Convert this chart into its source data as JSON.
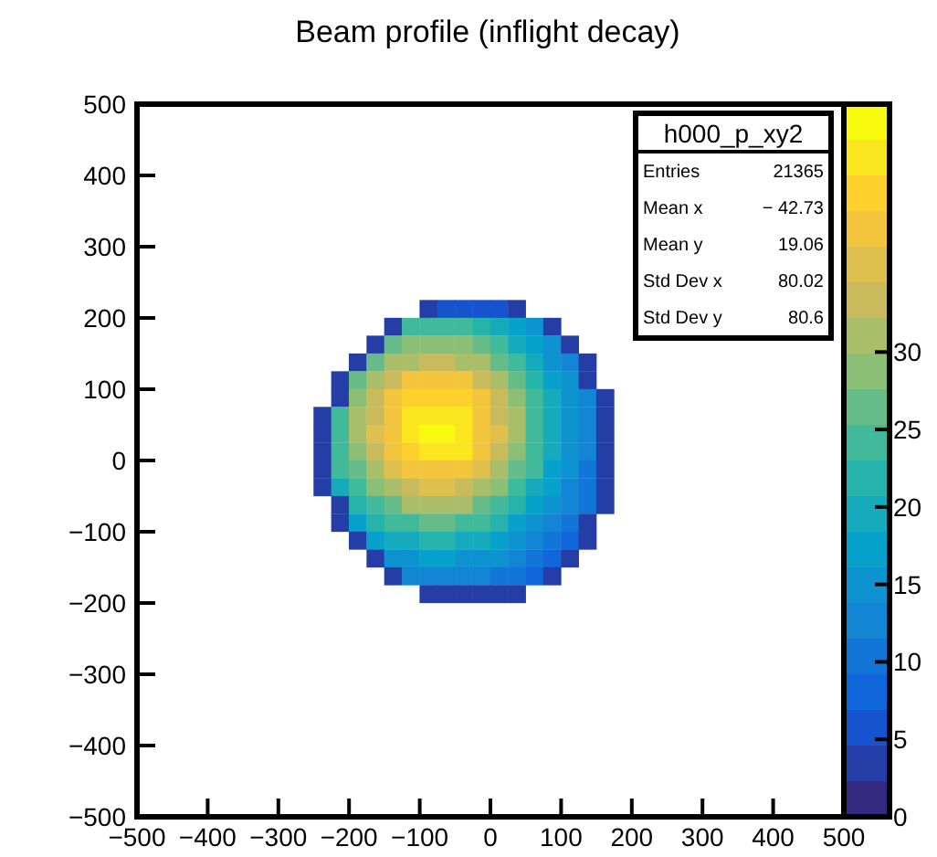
{
  "chart_data": {
    "type": "scatter",
    "title": "Beam profile (inflight decay)",
    "marker": "square",
    "xlim": [
      -500,
      500
    ],
    "ylim": [
      -500,
      500
    ],
    "xticks": [
      {
        "value": -500,
        "label": "−500"
      },
      {
        "value": -400,
        "label": "−400"
      },
      {
        "value": -300,
        "label": "−300"
      },
      {
        "value": -200,
        "label": "−200"
      },
      {
        "value": -100,
        "label": "−100"
      },
      0,
      100,
      200,
      300,
      400,
      500
    ],
    "yticks": [
      {
        "value": -500,
        "label": "−500"
      },
      {
        "value": -400,
        "label": "−400"
      },
      {
        "value": -300,
        "label": "−300"
      },
      {
        "value": -200,
        "label": "−200"
      },
      {
        "value": -100,
        "label": "−100"
      },
      0,
      100,
      200,
      300,
      400,
      500
    ],
    "clim": [
      0,
      46
    ],
    "cticks": [
      0,
      5,
      10,
      15,
      20,
      25,
      30
    ],
    "x": [
      -87.5,
      -62.5,
      -37.5,
      -12.5,
      12.5,
      37.5,
      -137.5,
      -112.5,
      -87.5,
      -62.5,
      -37.5,
      -12.5,
      12.5,
      37.5,
      62.5,
      87.5,
      -162.5,
      -137.5,
      -112.5,
      -87.5,
      -62.5,
      -37.5,
      -12.5,
      12.5,
      37.5,
      62.5,
      87.5,
      112.5,
      -187.5,
      -162.5,
      -137.5,
      -112.5,
      -87.5,
      -62.5,
      -37.5,
      -12.5,
      12.5,
      37.5,
      62.5,
      87.5,
      112.5,
      137.5,
      -212.5,
      -187.5,
      -162.5,
      -137.5,
      -112.5,
      -87.5,
      -62.5,
      -37.5,
      -12.5,
      12.5,
      37.5,
      62.5,
      87.5,
      112.5,
      137.5,
      -212.5,
      -187.5,
      -162.5,
      -137.5,
      -112.5,
      -87.5,
      -62.5,
      -37.5,
      -12.5,
      12.5,
      37.5,
      62.5,
      87.5,
      112.5,
      137.5,
      162.5,
      -237.5,
      -212.5,
      -187.5,
      -162.5,
      -137.5,
      -112.5,
      -87.5,
      -62.5,
      -37.5,
      -12.5,
      12.5,
      37.5,
      62.5,
      87.5,
      112.5,
      137.5,
      162.5,
      -237.5,
      -212.5,
      -187.5,
      -162.5,
      -137.5,
      -112.5,
      -87.5,
      -62.5,
      -37.5,
      -12.5,
      12.5,
      37.5,
      62.5,
      87.5,
      112.5,
      137.5,
      162.5,
      -237.5,
      -212.5,
      -187.5,
      -162.5,
      -137.5,
      -112.5,
      -87.5,
      -62.5,
      -37.5,
      -12.5,
      12.5,
      37.5,
      62.5,
      87.5,
      112.5,
      137.5,
      162.5,
      -237.5,
      -212.5,
      -187.5,
      -162.5,
      -137.5,
      -112.5,
      -87.5,
      -62.5,
      -37.5,
      -12.5,
      12.5,
      37.5,
      62.5,
      87.5,
      112.5,
      137.5,
      162.5,
      -237.5,
      -212.5,
      -187.5,
      -162.5,
      -137.5,
      -112.5,
      -87.5,
      -62.5,
      -37.5,
      -12.5,
      12.5,
      37.5,
      62.5,
      87.5,
      112.5,
      137.5,
      162.5,
      -212.5,
      -187.5,
      -162.5,
      -137.5,
      -112.5,
      -87.5,
      -62.5,
      -37.5,
      -12.5,
      12.5,
      37.5,
      62.5,
      87.5,
      112.5,
      137.5,
      162.5,
      -212.5,
      -187.5,
      -162.5,
      -137.5,
      -112.5,
      -87.5,
      -62.5,
      -37.5,
      -12.5,
      12.5,
      37.5,
      62.5,
      87.5,
      112.5,
      137.5,
      -187.5,
      -162.5,
      -137.5,
      -112.5,
      -87.5,
      -62.5,
      -37.5,
      -12.5,
      12.5,
      37.5,
      62.5,
      87.5,
      112.5,
      137.5,
      -162.5,
      -137.5,
      -112.5,
      -87.5,
      -62.5,
      -37.5,
      -12.5,
      12.5,
      37.5,
      62.5,
      87.5,
      112.5,
      -137.5,
      -112.5,
      -87.5,
      -62.5,
      -37.5,
      -12.5,
      12.5,
      37.5,
      62.5,
      87.5,
      -87.5,
      -62.5,
      -37.5,
      -12.5,
      12.5,
      37.5
    ],
    "values": [
      212.5,
      212.5,
      212.5,
      212.5,
      212.5,
      212.5,
      187.5,
      187.5,
      187.5,
      187.5,
      187.5,
      187.5,
      187.5,
      187.5,
      187.5,
      187.5,
      162.5,
      162.5,
      162.5,
      162.5,
      162.5,
      162.5,
      162.5,
      162.5,
      162.5,
      162.5,
      162.5,
      162.5,
      137.5,
      137.5,
      137.5,
      137.5,
      137.5,
      137.5,
      137.5,
      137.5,
      137.5,
      137.5,
      137.5,
      137.5,
      137.5,
      137.5,
      112.5,
      112.5,
      112.5,
      112.5,
      112.5,
      112.5,
      112.5,
      112.5,
      112.5,
      112.5,
      112.5,
      112.5,
      112.5,
      112.5,
      112.5,
      87.5,
      87.5,
      87.5,
      87.5,
      87.5,
      87.5,
      87.5,
      87.5,
      87.5,
      87.5,
      87.5,
      87.5,
      87.5,
      87.5,
      87.5,
      87.5,
      62.5,
      62.5,
      62.5,
      62.5,
      62.5,
      62.5,
      62.5,
      62.5,
      62.5,
      62.5,
      62.5,
      62.5,
      62.5,
      62.5,
      62.5,
      62.5,
      62.5,
      37.5,
      37.5,
      37.5,
      37.5,
      37.5,
      37.5,
      37.5,
      37.5,
      37.5,
      37.5,
      37.5,
      37.5,
      37.5,
      37.5,
      37.5,
      37.5,
      37.5,
      12.5,
      12.5,
      12.5,
      12.5,
      12.5,
      12.5,
      12.5,
      12.5,
      12.5,
      12.5,
      12.5,
      12.5,
      12.5,
      12.5,
      12.5,
      12.5,
      12.5,
      -12.5,
      -12.5,
      -12.5,
      -12.5,
      -12.5,
      -12.5,
      -12.5,
      -12.5,
      -12.5,
      -12.5,
      -12.5,
      -12.5,
      -12.5,
      -12.5,
      -12.5,
      -12.5,
      -12.5,
      -37.5,
      -37.5,
      -37.5,
      -37.5,
      -37.5,
      -37.5,
      -37.5,
      -37.5,
      -37.5,
      -37.5,
      -37.5,
      -37.5,
      -37.5,
      -37.5,
      -37.5,
      -37.5,
      -37.5,
      -62.5,
      -62.5,
      -62.5,
      -62.5,
      -62.5,
      -62.5,
      -62.5,
      -62.5,
      -62.5,
      -62.5,
      -62.5,
      -62.5,
      -62.5,
      -62.5,
      -62.5,
      -62.5,
      -87.5,
      -87.5,
      -87.5,
      -87.5,
      -87.5,
      -87.5,
      -87.5,
      -87.5,
      -87.5,
      -87.5,
      -87.5,
      -87.5,
      -87.5,
      -87.5,
      -87.5,
      -112.5,
      -112.5,
      -112.5,
      -112.5,
      -112.5,
      -112.5,
      -112.5,
      -112.5,
      -112.5,
      -112.5,
      -112.5,
      -112.5,
      -112.5,
      -112.5,
      -137.5,
      -137.5,
      -137.5,
      -137.5,
      -137.5,
      -137.5,
      -137.5,
      -137.5,
      -137.5,
      -137.5,
      -137.5,
      -137.5,
      -162.5,
      -162.5,
      -162.5,
      -162.5,
      -162.5,
      -162.5,
      -162.5,
      -162.5,
      -162.5,
      -162.5,
      -187.5,
      -187.5,
      -187.5,
      -187.5,
      -187.5,
      -187.5
    ],
    "cvalues": [
      4,
      5,
      5,
      5,
      5,
      4,
      4,
      23,
      24,
      24,
      23,
      21,
      19,
      17,
      14,
      4,
      4,
      26,
      28,
      29,
      29,
      28,
      26,
      23,
      20,
      17,
      14,
      4,
      4,
      27,
      30,
      32,
      34,
      34,
      32,
      30,
      27,
      23,
      19,
      16,
      13,
      4,
      4,
      26,
      30,
      34,
      37,
      38,
      38,
      37,
      34,
      30,
      26,
      22,
      18,
      14,
      4,
      4,
      28,
      33,
      37,
      40,
      41,
      41,
      40,
      37,
      33,
      28,
      23,
      19,
      15,
      12,
      4,
      4,
      25,
      30,
      34,
      39,
      42,
      43,
      43,
      42,
      39,
      34,
      30,
      25,
      20,
      16,
      12,
      4,
      4,
      25,
      30,
      35,
      39,
      42,
      46,
      44,
      42,
      39,
      35,
      30,
      25,
      20,
      16,
      12,
      4,
      4,
      24,
      29,
      34,
      38,
      41,
      42,
      42,
      43,
      38,
      34,
      29,
      24,
      19,
      15,
      12,
      4,
      4,
      23,
      27,
      31,
      35,
      38,
      39,
      39,
      38,
      35,
      31,
      27,
      23,
      18,
      15,
      11,
      4,
      4,
      20,
      24,
      28,
      32,
      34,
      35,
      35,
      34,
      32,
      28,
      24,
      20,
      17,
      13,
      11,
      4,
      4,
      21,
      25,
      27,
      30,
      31,
      31,
      30,
      27,
      25,
      21,
      18,
      15,
      12,
      10,
      4,
      4,
      18,
      21,
      23,
      25,
      26,
      26,
      25,
      23,
      21,
      18,
      15,
      13,
      10,
      4,
      4,
      17,
      19,
      20,
      21,
      21,
      20,
      19,
      17,
      15,
      13,
      11,
      9,
      4,
      4,
      15,
      16,
      17,
      17,
      16,
      15,
      14,
      12,
      11,
      9,
      4,
      4,
      13,
      13,
      13,
      13,
      12,
      11,
      10,
      9,
      4,
      3,
      4,
      4,
      4,
      4,
      3
    ],
    "annotations": [
      "h000_p_xy2",
      "Entries\t21365",
      "Mean x\t− 42.73",
      "Mean y\t19.06",
      "Std Dev x\t80.02",
      "Std Dev y\t80.6"
    ]
  }
}
